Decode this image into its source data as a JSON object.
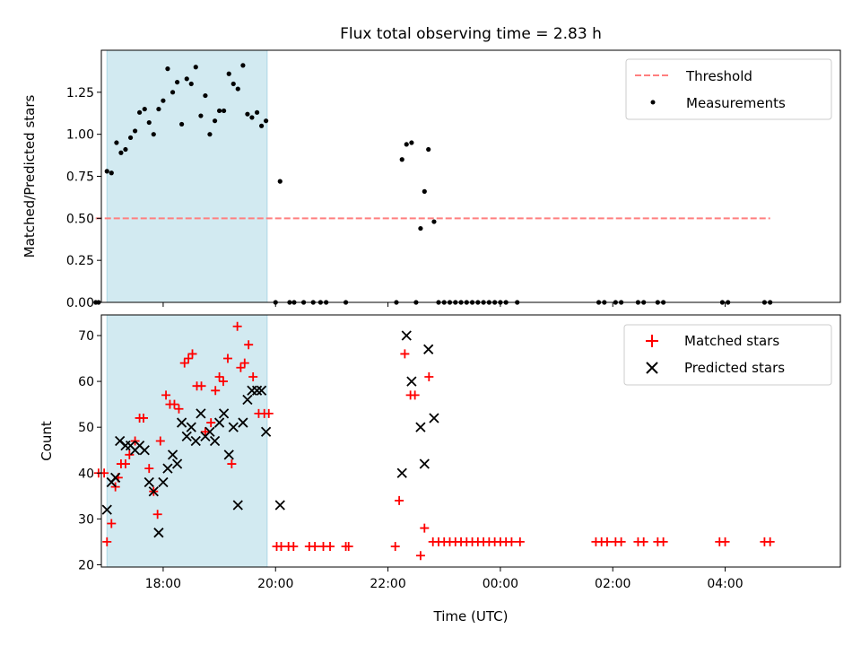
{
  "chart_data": [
    {
      "type": "scatter",
      "title": "Flux total observing time = 2.83 h",
      "xlabel": "",
      "ylabel": "Matched/Predicted stars",
      "xlim": [
        -7.1,
        6.05
      ],
      "ylim": [
        0.0,
        1.5
      ],
      "x_ticks": [
        -6,
        -4,
        -2,
        0,
        2,
        4
      ],
      "y_ticks": [
        0.0,
        0.25,
        0.5,
        0.75,
        1.0,
        1.25
      ],
      "y_tick_labels": [
        "0.00",
        "0.25",
        "0.50",
        "0.75",
        "1.00",
        "1.25"
      ],
      "grid": false,
      "legend_position": "top-right",
      "legend": [
        "Threshold",
        "Measurements"
      ],
      "threshold": {
        "name": "Threshold",
        "y": 0.5,
        "x_range": [
          -7.2,
          4.8
        ],
        "color": "#ff7f7f"
      },
      "shaded_region": {
        "x_range": [
          -7.0,
          -4.15
        ],
        "color": "#add8e6"
      },
      "series": [
        {
          "name": "Measurements",
          "color": "#000000",
          "marker": "dot",
          "points": [
            [
              -7.2,
              0.0
            ],
            [
              -7.15,
              0.0
            ],
            [
              -7.0,
              0.78
            ],
            [
              -6.92,
              0.77
            ],
            [
              -6.83,
              0.95
            ],
            [
              -6.75,
              0.89
            ],
            [
              -6.67,
              0.91
            ],
            [
              -6.58,
              0.98
            ],
            [
              -6.5,
              1.02
            ],
            [
              -6.42,
              1.13
            ],
            [
              -6.33,
              1.15
            ],
            [
              -6.25,
              1.07
            ],
            [
              -6.17,
              1.0
            ],
            [
              -6.08,
              1.15
            ],
            [
              -6.0,
              1.2
            ],
            [
              -5.92,
              1.39
            ],
            [
              -5.83,
              1.25
            ],
            [
              -5.75,
              1.31
            ],
            [
              -5.67,
              1.06
            ],
            [
              -5.58,
              1.33
            ],
            [
              -5.5,
              1.3
            ],
            [
              -5.42,
              1.4
            ],
            [
              -5.33,
              1.11
            ],
            [
              -5.25,
              1.23
            ],
            [
              -5.17,
              1.0
            ],
            [
              -5.08,
              1.08
            ],
            [
              -5.0,
              1.14
            ],
            [
              -4.92,
              1.14
            ],
            [
              -4.83,
              1.36
            ],
            [
              -4.75,
              1.3
            ],
            [
              -4.67,
              1.27
            ],
            [
              -4.58,
              1.41
            ],
            [
              -4.5,
              1.12
            ],
            [
              -4.42,
              1.1
            ],
            [
              -4.33,
              1.13
            ],
            [
              -4.25,
              1.05
            ],
            [
              -4.17,
              1.08
            ],
            [
              -4.0,
              0.0
            ],
            [
              -3.92,
              0.72
            ],
            [
              -3.75,
              0.0
            ],
            [
              -3.67,
              0.0
            ],
            [
              -3.5,
              0.0
            ],
            [
              -3.33,
              0.0
            ],
            [
              -3.2,
              0.0
            ],
            [
              -3.1,
              0.0
            ],
            [
              -2.75,
              0.0
            ],
            [
              -1.85,
              0.0
            ],
            [
              -1.75,
              0.85
            ],
            [
              -1.67,
              0.94
            ],
            [
              -1.58,
              0.95
            ],
            [
              -1.5,
              0.0
            ],
            [
              -1.42,
              0.44
            ],
            [
              -1.35,
              0.66
            ],
            [
              -1.28,
              0.91
            ],
            [
              -1.18,
              0.48
            ],
            [
              -1.1,
              0.0
            ],
            [
              -1.0,
              0.0
            ],
            [
              -0.9,
              0.0
            ],
            [
              -0.8,
              0.0
            ],
            [
              -0.7,
              0.0
            ],
            [
              -0.6,
              0.0
            ],
            [
              -0.5,
              0.0
            ],
            [
              -0.4,
              0.0
            ],
            [
              -0.3,
              0.0
            ],
            [
              -0.2,
              0.0
            ],
            [
              -0.1,
              0.0
            ],
            [
              0.0,
              0.0
            ],
            [
              0.1,
              0.0
            ],
            [
              0.3,
              0.0
            ],
            [
              1.75,
              0.0
            ],
            [
              1.85,
              0.0
            ],
            [
              2.05,
              0.0
            ],
            [
              2.15,
              0.0
            ],
            [
              2.45,
              0.0
            ],
            [
              2.55,
              0.0
            ],
            [
              2.8,
              0.0
            ],
            [
              2.9,
              0.0
            ],
            [
              3.95,
              0.0
            ],
            [
              4.05,
              0.0
            ],
            [
              4.7,
              0.0
            ],
            [
              4.8,
              0.0
            ]
          ]
        }
      ]
    },
    {
      "type": "scatter",
      "title": "",
      "xlabel": "Time (UTC)",
      "ylabel": "Count",
      "xlim": [
        -7.1,
        6.05
      ],
      "ylim": [
        19.5,
        74.5
      ],
      "x_ticks": [
        -6,
        -4,
        -2,
        0,
        2,
        4
      ],
      "x_tick_labels": [
        "18:00",
        "20:00",
        "22:00",
        "00:00",
        "02:00",
        "04:00"
      ],
      "y_ticks": [
        20,
        30,
        40,
        50,
        60,
        70
      ],
      "y_tick_labels": [
        "20",
        "30",
        "40",
        "50",
        "60",
        "70"
      ],
      "grid": false,
      "legend_position": "top-right",
      "legend": [
        "Matched stars",
        "Predicted stars"
      ],
      "shaded_region": {
        "x_range": [
          -7.0,
          -4.15
        ],
        "color": "#add8e6"
      },
      "series": [
        {
          "name": "Matched stars",
          "color": "#ff0000",
          "marker": "plus",
          "points": [
            [
              -7.15,
              40
            ],
            [
              -7.05,
              40
            ],
            [
              -7.0,
              25
            ],
            [
              -6.92,
              29
            ],
            [
              -6.85,
              37
            ],
            [
              -6.8,
              39
            ],
            [
              -6.75,
              42
            ],
            [
              -6.67,
              42
            ],
            [
              -6.6,
              44
            ],
            [
              -6.5,
              47
            ],
            [
              -6.42,
              52
            ],
            [
              -6.35,
              52
            ],
            [
              -6.25,
              41
            ],
            [
              -6.17,
              36
            ],
            [
              -6.1,
              31
            ],
            [
              -6.05,
              47
            ],
            [
              -5.95,
              57
            ],
            [
              -5.88,
              55
            ],
            [
              -5.8,
              55
            ],
            [
              -5.72,
              54
            ],
            [
              -5.62,
              64
            ],
            [
              -5.55,
              65
            ],
            [
              -5.48,
              66
            ],
            [
              -5.4,
              59
            ],
            [
              -5.32,
              59
            ],
            [
              -5.25,
              49
            ],
            [
              -5.15,
              51
            ],
            [
              -5.07,
              58
            ],
            [
              -5.0,
              61
            ],
            [
              -4.93,
              60
            ],
            [
              -4.85,
              65
            ],
            [
              -4.78,
              42
            ],
            [
              -4.68,
              72
            ],
            [
              -4.62,
              63
            ],
            [
              -4.55,
              64
            ],
            [
              -4.48,
              68
            ],
            [
              -4.4,
              61
            ],
            [
              -4.3,
              53
            ],
            [
              -4.2,
              53
            ],
            [
              -4.12,
              53
            ],
            [
              -3.98,
              24
            ],
            [
              -3.9,
              24
            ],
            [
              -3.77,
              24
            ],
            [
              -3.68,
              24
            ],
            [
              -3.4,
              24
            ],
            [
              -3.3,
              24
            ],
            [
              -3.15,
              24
            ],
            [
              -3.03,
              24
            ],
            [
              -2.75,
              24
            ],
            [
              -2.7,
              24
            ],
            [
              -1.87,
              24
            ],
            [
              -1.8,
              34
            ],
            [
              -1.7,
              66
            ],
            [
              -1.6,
              57
            ],
            [
              -1.52,
              57
            ],
            [
              -1.42,
              22
            ],
            [
              -1.35,
              28
            ],
            [
              -1.27,
              61
            ],
            [
              -1.2,
              25
            ],
            [
              -1.1,
              25
            ],
            [
              -1.0,
              25
            ],
            [
              -0.9,
              25
            ],
            [
              -0.8,
              25
            ],
            [
              -0.7,
              25
            ],
            [
              -0.6,
              25
            ],
            [
              -0.5,
              25
            ],
            [
              -0.4,
              25
            ],
            [
              -0.3,
              25
            ],
            [
              -0.2,
              25
            ],
            [
              -0.1,
              25
            ],
            [
              0.0,
              25
            ],
            [
              0.1,
              25
            ],
            [
              0.2,
              25
            ],
            [
              0.35,
              25
            ],
            [
              1.7,
              25
            ],
            [
              1.8,
              25
            ],
            [
              1.9,
              25
            ],
            [
              2.05,
              25
            ],
            [
              2.15,
              25
            ],
            [
              2.45,
              25
            ],
            [
              2.55,
              25
            ],
            [
              2.8,
              25
            ],
            [
              2.9,
              25
            ],
            [
              3.9,
              25
            ],
            [
              4.0,
              25
            ],
            [
              4.7,
              25
            ],
            [
              4.8,
              25
            ]
          ]
        },
        {
          "name": "Predicted stars",
          "color": "#000000",
          "marker": "x",
          "points": [
            [
              -7.0,
              32
            ],
            [
              -6.92,
              38
            ],
            [
              -6.85,
              39
            ],
            [
              -6.77,
              47
            ],
            [
              -6.67,
              46
            ],
            [
              -6.58,
              46
            ],
            [
              -6.5,
              45
            ],
            [
              -6.42,
              46
            ],
            [
              -6.33,
              45
            ],
            [
              -6.25,
              38
            ],
            [
              -6.17,
              36
            ],
            [
              -6.08,
              27
            ],
            [
              -6.0,
              38
            ],
            [
              -5.92,
              41
            ],
            [
              -5.83,
              44
            ],
            [
              -5.75,
              42
            ],
            [
              -5.67,
              51
            ],
            [
              -5.58,
              48
            ],
            [
              -5.5,
              50
            ],
            [
              -5.42,
              47
            ],
            [
              -5.33,
              53
            ],
            [
              -5.25,
              48
            ],
            [
              -5.17,
              49
            ],
            [
              -5.08,
              47
            ],
            [
              -5.0,
              51
            ],
            [
              -4.92,
              53
            ],
            [
              -4.83,
              44
            ],
            [
              -4.75,
              50
            ],
            [
              -4.67,
              33
            ],
            [
              -4.58,
              51
            ],
            [
              -4.5,
              56
            ],
            [
              -4.42,
              58
            ],
            [
              -4.33,
              58
            ],
            [
              -4.25,
              58
            ],
            [
              -4.17,
              49
            ],
            [
              -3.92,
              33
            ],
            [
              -1.75,
              40
            ],
            [
              -1.67,
              70
            ],
            [
              -1.58,
              60
            ],
            [
              -1.42,
              50
            ],
            [
              -1.35,
              42
            ],
            [
              -1.28,
              67
            ],
            [
              -1.18,
              52
            ]
          ]
        }
      ]
    }
  ]
}
